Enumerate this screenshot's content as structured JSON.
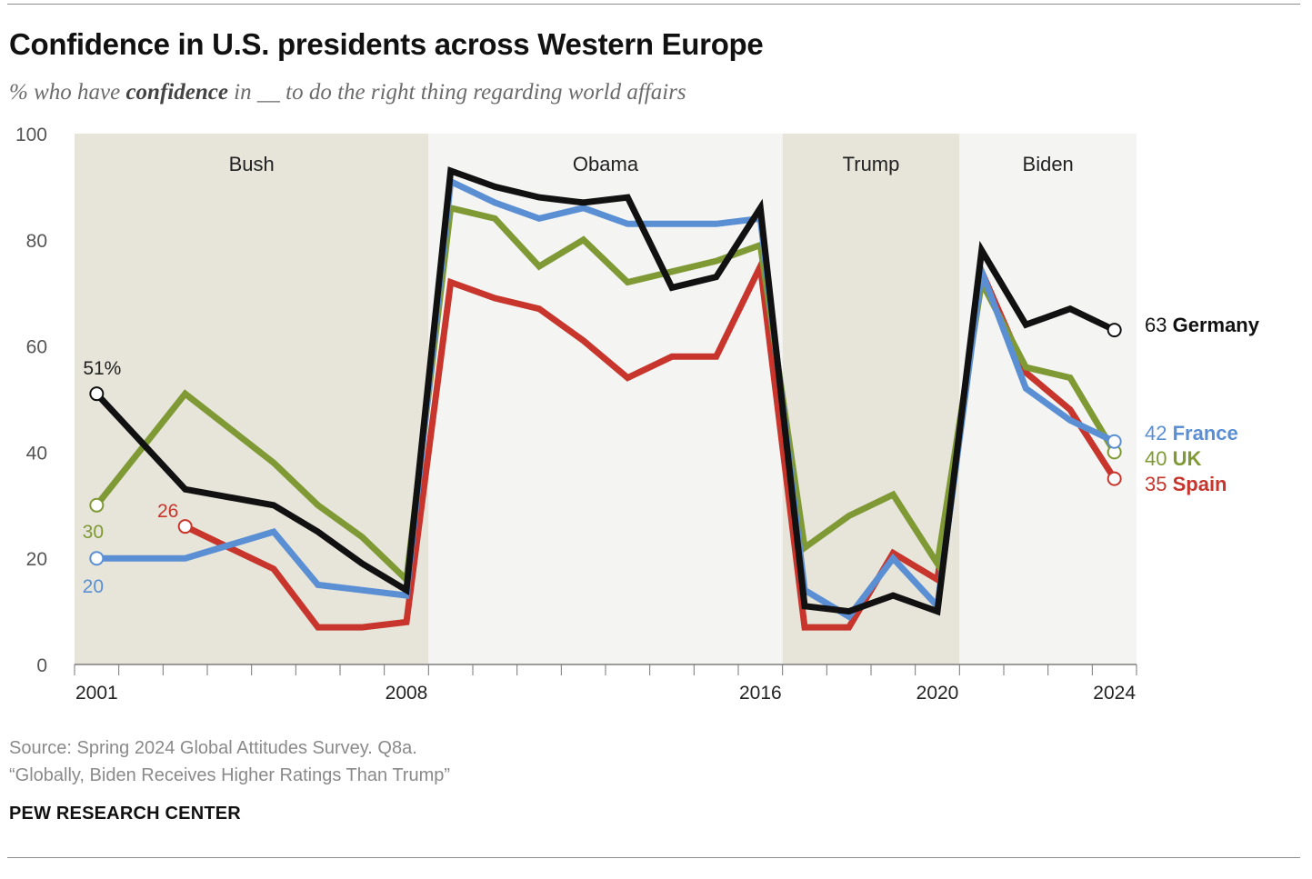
{
  "header": {
    "title": "Confidence in U.S. presidents across Western Europe",
    "subtitle_pre": "% who have ",
    "subtitle_bold": "confidence",
    "subtitle_post": " in __ to do the right thing regarding world affairs"
  },
  "footer": {
    "source": "Source: Spring 2024 Global Attitudes Survey. Q8a.",
    "report": "“Globally, Biden Receives Higher Ratings Than Trump”",
    "brand": "PEW RESEARCH CENTER"
  },
  "chart_data": {
    "type": "line",
    "ylim": [
      0,
      100
    ],
    "xlim": [
      2000.5,
      2024.5
    ],
    "y_ticks": [
      0,
      20,
      40,
      60,
      80,
      100
    ],
    "y_tick_labels": [
      "0",
      "20",
      "40",
      "60",
      "80",
      "100"
    ],
    "x_tick_labels": [
      {
        "x": 2001,
        "label": "2001"
      },
      {
        "x": 2008,
        "label": "2008"
      },
      {
        "x": 2016,
        "label": "2016"
      },
      {
        "x": 2020,
        "label": "2020"
      },
      {
        "x": 2024,
        "label": "2024"
      }
    ],
    "x_minor_ticks": [
      2000.5,
      2001.5,
      2002.5,
      2003.5,
      2004.5,
      2005.5,
      2006.5,
      2007.5,
      2008.5,
      2009.5,
      2010.5,
      2011.5,
      2012.5,
      2013.5,
      2014.5,
      2015.5,
      2016.5,
      2017.5,
      2018.5,
      2019.5,
      2020.5,
      2021.5,
      2022.5,
      2023.5,
      2024.5
    ],
    "bands": [
      {
        "label": "Bush",
        "from": 2000.5,
        "to": 2008.5,
        "color": "#e7e4da"
      },
      {
        "label": "Obama",
        "from": 2008.5,
        "to": 2016.5,
        "color": "#f4f4f3"
      },
      {
        "label": "Trump",
        "from": 2016.5,
        "to": 2020.5,
        "color": "#e7e4da"
      },
      {
        "label": "Biden",
        "from": 2020.5,
        "to": 2024.5,
        "color": "#f4f4f3"
      }
    ],
    "series": [
      {
        "name": "Spain",
        "color": "#c7352c",
        "points": [
          [
            2003,
            26
          ],
          [
            2005,
            18
          ],
          [
            2006,
            7
          ],
          [
            2007,
            7
          ],
          [
            2008,
            8
          ],
          [
            2009,
            72
          ],
          [
            2010,
            69
          ],
          [
            2011,
            67
          ],
          [
            2012,
            61
          ],
          [
            2013,
            54
          ],
          [
            2014,
            58
          ],
          [
            2015,
            58
          ],
          [
            2016,
            75
          ],
          [
            2017,
            7
          ],
          [
            2018,
            7
          ],
          [
            2019,
            21
          ],
          [
            2020,
            16
          ],
          [
            2021,
            74
          ],
          [
            2022,
            55
          ],
          [
            2023,
            48
          ],
          [
            2024,
            35
          ]
        ],
        "start_label": "26",
        "end_label_value": "35",
        "end_label_name": "Spain"
      },
      {
        "name": "UK",
        "color": "#7f9a35",
        "points": [
          [
            2001,
            30
          ],
          [
            2003,
            51
          ],
          [
            2005,
            38
          ],
          [
            2006,
            30
          ],
          [
            2007,
            24
          ],
          [
            2008,
            16
          ],
          [
            2009,
            86
          ],
          [
            2010,
            84
          ],
          [
            2011,
            75
          ],
          [
            2012,
            80
          ],
          [
            2013,
            72
          ],
          [
            2014,
            74
          ],
          [
            2015,
            76
          ],
          [
            2016,
            79
          ],
          [
            2017,
            22
          ],
          [
            2018,
            28
          ],
          [
            2019,
            32
          ],
          [
            2020,
            19
          ],
          [
            2021,
            72
          ],
          [
            2022,
            56
          ],
          [
            2023,
            54
          ],
          [
            2024,
            40
          ]
        ],
        "start_label": "30",
        "end_label_value": "40",
        "end_label_name": "UK"
      },
      {
        "name": "France",
        "color": "#5b8fd4",
        "points": [
          [
            2001,
            20
          ],
          [
            2003,
            20
          ],
          [
            2005,
            25
          ],
          [
            2006,
            15
          ],
          [
            2007,
            14
          ],
          [
            2008,
            13
          ],
          [
            2009,
            91
          ],
          [
            2010,
            87
          ],
          [
            2011,
            84
          ],
          [
            2012,
            86
          ],
          [
            2013,
            83
          ],
          [
            2014,
            83
          ],
          [
            2015,
            83
          ],
          [
            2016,
            84
          ],
          [
            2017,
            14
          ],
          [
            2018,
            9
          ],
          [
            2019,
            20
          ],
          [
            2020,
            11
          ],
          [
            2021,
            74
          ],
          [
            2022,
            52
          ],
          [
            2023,
            46
          ],
          [
            2024,
            42
          ]
        ],
        "start_label": "20",
        "end_label_value": "42",
        "end_label_name": "France"
      },
      {
        "name": "Germany",
        "color": "#111111",
        "points": [
          [
            2001,
            51
          ],
          [
            2003,
            33
          ],
          [
            2005,
            30
          ],
          [
            2006,
            25
          ],
          [
            2007,
            19
          ],
          [
            2008,
            14
          ],
          [
            2009,
            93
          ],
          [
            2010,
            90
          ],
          [
            2011,
            88
          ],
          [
            2012,
            87
          ],
          [
            2013,
            88
          ],
          [
            2014,
            71
          ],
          [
            2015,
            73
          ],
          [
            2016,
            86
          ],
          [
            2017,
            11
          ],
          [
            2018,
            10
          ],
          [
            2019,
            13
          ],
          [
            2020,
            10
          ],
          [
            2021,
            78
          ],
          [
            2022,
            64
          ],
          [
            2023,
            67
          ],
          [
            2024,
            63
          ]
        ],
        "start_label": "51%",
        "end_label_value": "63",
        "end_label_name": "Germany"
      }
    ]
  }
}
